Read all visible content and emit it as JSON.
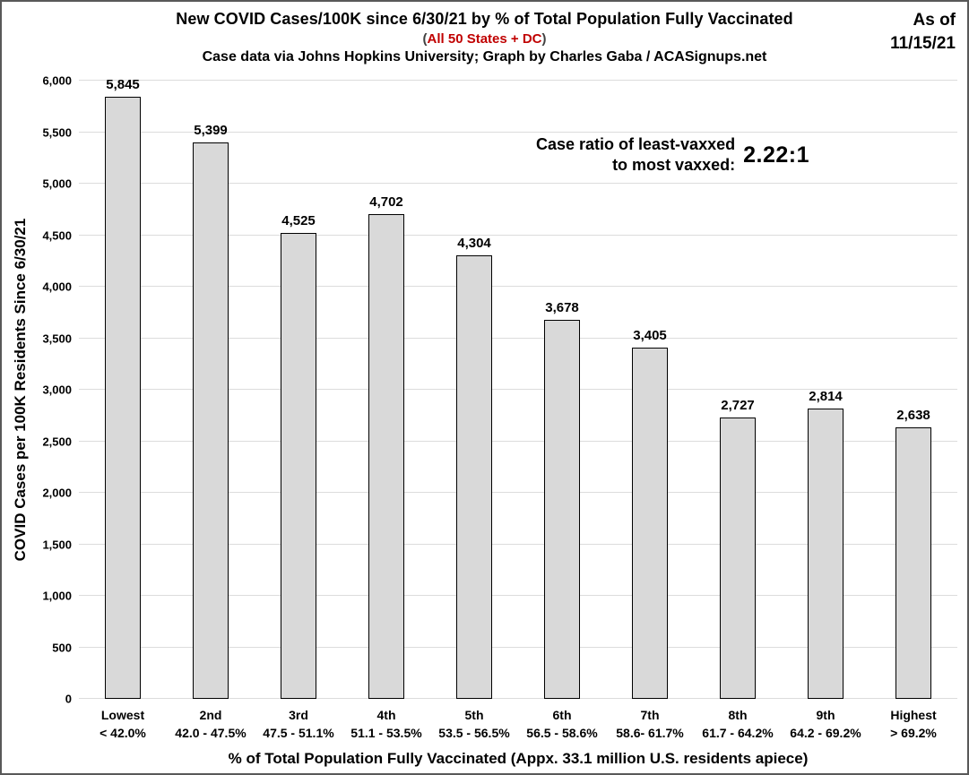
{
  "header": {
    "title": "New COVID Cases/100K since 6/30/21 by % of Total Population Fully Vaccinated",
    "subtitle": {
      "open": "(",
      "text": "All 50 States + DC",
      "close": ")"
    },
    "credit": "Case data via Johns Hopkins University; Graph by Charles Gaba / ACASignups.net",
    "as_of_line1": "As of",
    "as_of_line2": "11/15/21"
  },
  "annotation": {
    "line1": "Case ratio of least-vaxxed",
    "line2": "to most vaxxed:",
    "value": "2.22:1"
  },
  "colors": {
    "bar_fill": "#d9d9d9",
    "bar_border": "#000000",
    "gridline": "#dcdcdc",
    "subtitle_red": "#c00000"
  },
  "chart_data": {
    "type": "bar",
    "title": "New COVID Cases/100K since 6/30/21 by % of Total Population Fully Vaccinated",
    "categories": [
      "Lowest",
      "2nd",
      "3rd",
      "4th",
      "5th",
      "6th",
      "7th",
      "8th",
      "9th",
      "Highest"
    ],
    "category_ranges": [
      "< 42.0%",
      "42.0 - 47.5%",
      "47.5 - 51.1%",
      "51.1 - 53.5%",
      "53.5 - 56.5%",
      "56.5 - 58.6%",
      "58.6- 61.7%",
      "61.7 - 64.2%",
      "64.2 - 69.2%",
      "> 69.2%"
    ],
    "values": [
      5845,
      5399,
      4525,
      4702,
      4304,
      3678,
      3405,
      2727,
      2814,
      2638
    ],
    "value_labels": [
      "5,845",
      "5,399",
      "4,525",
      "4,702",
      "4,304",
      "3,678",
      "3,405",
      "2,727",
      "2,814",
      "2,638"
    ],
    "xlabel": "% of Total Population Fully Vaccinated (Appx. 33.1 million U.S. residents apiece)",
    "ylabel": "COVID Cases per 100K Residents Since 6/30/21",
    "ylim": [
      0,
      6000
    ],
    "ytick_step": 500,
    "grid": true,
    "legend": "none"
  }
}
